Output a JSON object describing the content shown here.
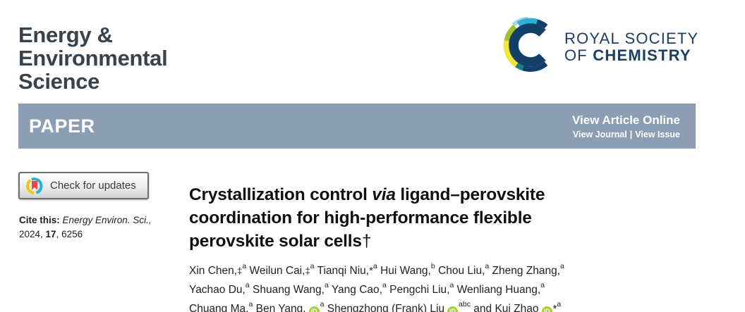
{
  "masthead": {
    "journal_title_lines": [
      "Energy &",
      "Environmental",
      "Science"
    ],
    "rsc_wordmark": {
      "line1": "ROYAL SOCIETY",
      "line2_of": "OF ",
      "line2_name": "CHEMISTRY"
    }
  },
  "banner": {
    "section_label": "PAPER",
    "view_article_online": "View Article Online",
    "view_journal": "View Journal",
    "link_separator": "|",
    "view_issue": "View Issue"
  },
  "sidebar": {
    "check_updates_label": "Check for updates",
    "cite": {
      "label": "Cite this: ",
      "journal_abbrev": "Energy Environ. Sci.,",
      "year": "2024, ",
      "volume": "17",
      "pages": ", 6256"
    }
  },
  "article": {
    "title_lines": [
      {
        "pre": "Crystallization control ",
        "italic": "via",
        "post": " ligand–perovskite"
      },
      {
        "pre": "coordination for high-performance flexible"
      },
      {
        "pre": "perovskite solar cells",
        "dagger": "†"
      }
    ],
    "orcid_icon_label": "iD",
    "ddagger_symbol": "‡",
    "star_symbol": "*",
    "authors": [
      {
        "name": "Xin Chen,",
        "ddagger": true,
        "sup": "a"
      },
      {
        "name": "Weilun Cai,",
        "ddagger": true,
        "sup": "a"
      },
      {
        "name": "Tianqi Niu,",
        "star": true,
        "sup": "a"
      },
      {
        "name": "Hui Wang,",
        "sup": "b"
      },
      {
        "name": "Chou Liu,",
        "sup": "a"
      },
      {
        "name": "Zheng Zhang,",
        "sup": "a",
        "break_after": true
      },
      {
        "name": "Yachao Du,",
        "sup": "a"
      },
      {
        "name": "Shuang Wang,",
        "sup": "a"
      },
      {
        "name": "Yang Cao,",
        "sup": "a"
      },
      {
        "name": "Pengchi Liu,",
        "sup": "a"
      },
      {
        "name": "Wenliang Huang,",
        "sup": "a",
        "break_after": true
      },
      {
        "name": "Chuang Ma,",
        "sup": "a"
      },
      {
        "name": "Ben Yang,",
        "orcid": true,
        "sup": "a"
      },
      {
        "name": "Shengzhong (Frank) Liu",
        "orcid": true,
        "sup": "abc"
      },
      {
        "name": "and Kui Zhao",
        "orcid": true,
        "star": true,
        "sup": "a"
      }
    ]
  },
  "colors": {
    "banner_bg": "#8c9eb3",
    "journal_title": "#36424c",
    "rsc_navy": "#1b3e66",
    "orcid_green": "#a6ce39",
    "crossmark_red": "#ef4450",
    "crossmark_cyan": "#21b5cf",
    "crossmark_yellow": "#fdc511",
    "logo_cyan": "#2fb1d4",
    "logo_light_blue": "#a5d8ea",
    "logo_green": "#a0c32a",
    "logo_yellow": "#f2e535",
    "logo_teal": "#13808c",
    "logo_navy": "#143f68"
  }
}
